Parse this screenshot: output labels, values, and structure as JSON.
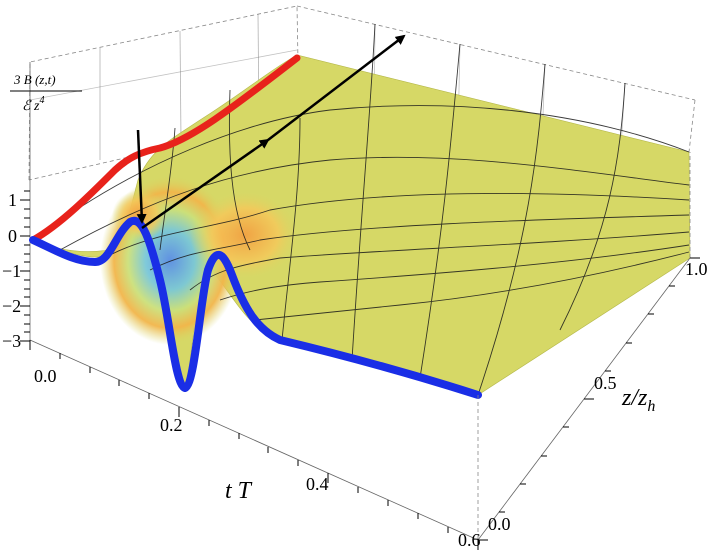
{
  "chart_data": {
    "type": "surface3d",
    "title": "",
    "zlabel": {
      "numerator": "3 B (z,t)",
      "denominator_main": "ℰ z",
      "denominator_exp": "4"
    },
    "xlabel": {
      "main": "t T"
    },
    "ylabel": {
      "main": "z/z",
      "subscript": "h"
    },
    "x_ticks": [
      "0.0",
      "0.2",
      "0.4",
      "0.6"
    ],
    "x_tick_values": [
      0.0,
      0.2,
      0.4,
      0.6
    ],
    "y_ticks": [
      "0.0",
      "0.5",
      "1.0"
    ],
    "y_tick_values": [
      0.0,
      0.5,
      1.0
    ],
    "z_ticks": [
      "1",
      "0",
      "−1",
      "−2",
      "−3"
    ],
    "z_tick_values": [
      1,
      0,
      -1,
      -2,
      -3
    ],
    "xlim": [
      0,
      0.6
    ],
    "ylim": [
      0,
      1
    ],
    "zlim": [
      -3.2,
      1.3
    ],
    "surface_color": "#d6d866",
    "colors": {
      "front_edge": "#1a2ee6",
      "back_edge": "#e8221b",
      "mesh": "#1a1a1a",
      "arrows": "#000000"
    },
    "front_edge_profile_z0": {
      "x": [
        0.0,
        0.04,
        0.07,
        0.1,
        0.12,
        0.15,
        0.18,
        0.2,
        0.23,
        0.26,
        0.3,
        0.35,
        0.4,
        0.5,
        0.6
      ],
      "z": [
        0.0,
        -0.6,
        -0.5,
        0.5,
        1.1,
        -0.4,
        -2.9,
        -2.2,
        -0.8,
        -1.2,
        -1.7,
        -1.9,
        -2.0,
        -2.2,
        -2.4
      ]
    },
    "back_edge_profile_z1": {
      "x": [
        0.0,
        0.1,
        0.2,
        0.3,
        0.6
      ],
      "z": [
        0.0,
        1.1,
        1.6,
        1.75,
        1.9
      ]
    },
    "arrows": [
      {
        "from": "upper-left",
        "to": "pulse-crest",
        "meaning": "downward"
      },
      {
        "from": "pulse-crest",
        "to": "far-back",
        "meaning": "along z/z_h"
      }
    ]
  }
}
